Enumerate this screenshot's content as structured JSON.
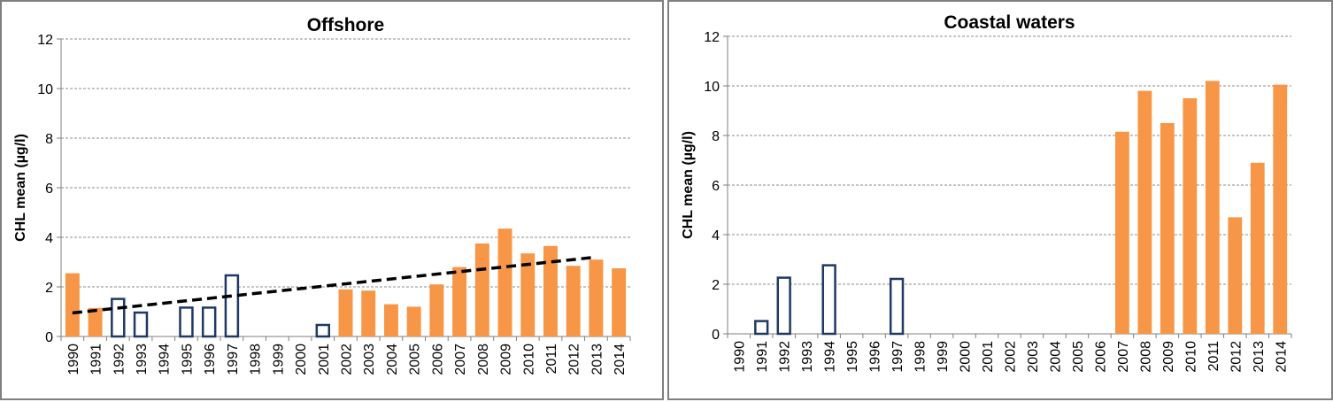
{
  "chart_data": [
    {
      "type": "bar",
      "title": "Offshore",
      "xlabel": "",
      "ylabel": "CHL mean (µg/l)",
      "ylim": [
        0,
        12
      ],
      "yticks": [
        0,
        2,
        4,
        6,
        8,
        10,
        12
      ],
      "grid": true,
      "trendline": {
        "style": "dashed",
        "from": {
          "x": "1990",
          "y": 0.95
        },
        "to": {
          "x": "2013",
          "y": 3.2
        }
      },
      "categories": [
        "1990",
        "1991",
        "1992",
        "1993",
        "1994",
        "1995",
        "1996",
        "1997",
        "1998",
        "1999",
        "2000",
        "2001",
        "2002",
        "2003",
        "2004",
        "2005",
        "2006",
        "2007",
        "2008",
        "2009",
        "2010",
        "2011",
        "2012",
        "2013",
        "2014"
      ],
      "series": [
        {
          "style": "filled",
          "color": "#f79646",
          "values": [
            2.55,
            1.15,
            null,
            null,
            null,
            null,
            null,
            null,
            null,
            null,
            null,
            null,
            1.9,
            1.85,
            1.3,
            1.2,
            2.1,
            2.8,
            3.75,
            4.35,
            3.35,
            3.65,
            2.85,
            3.1,
            2.75
          ]
        },
        {
          "style": "outline",
          "color": "#1f3864",
          "values": [
            null,
            null,
            1.55,
            1.0,
            null,
            1.2,
            1.2,
            2.5,
            null,
            null,
            null,
            0.5,
            null,
            null,
            null,
            null,
            null,
            null,
            null,
            null,
            null,
            null,
            null,
            null,
            null
          ]
        }
      ]
    },
    {
      "type": "bar",
      "title": "Coastal waters",
      "xlabel": "",
      "ylabel": "CHL mean (µg/l)",
      "ylim": [
        0,
        12
      ],
      "yticks": [
        0,
        2,
        4,
        6,
        8,
        10,
        12
      ],
      "grid": true,
      "categories": [
        "1990",
        "1991",
        "1992",
        "1993",
        "1994",
        "1995",
        "1996",
        "1997",
        "1998",
        "1999",
        "2000",
        "2001",
        "2002",
        "2003",
        "2004",
        "2005",
        "2006",
        "2007",
        "2008",
        "2009",
        "2010",
        "2011",
        "2012",
        "2013",
        "2014"
      ],
      "series": [
        {
          "style": "filled",
          "color": "#f79646",
          "values": [
            null,
            null,
            null,
            null,
            null,
            null,
            null,
            null,
            null,
            null,
            null,
            null,
            null,
            null,
            null,
            null,
            null,
            8.15,
            9.8,
            8.5,
            9.5,
            10.2,
            4.7,
            6.9,
            10.05
          ]
        },
        {
          "style": "outline",
          "color": "#1f3864",
          "values": [
            null,
            0.55,
            2.3,
            null,
            2.8,
            null,
            null,
            2.25,
            null,
            null,
            null,
            null,
            null,
            null,
            null,
            null,
            null,
            null,
            null,
            null,
            null,
            null,
            null,
            null,
            null
          ]
        }
      ]
    }
  ]
}
